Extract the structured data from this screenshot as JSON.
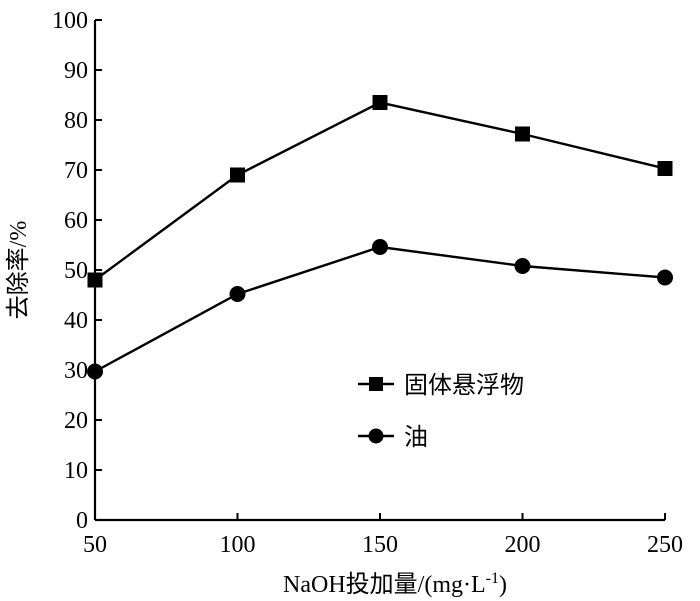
{
  "chart_data": {
    "type": "line",
    "xlabel": "NaOH投加量/(mg·L⁻¹)",
    "xlabel_main": "NaOH投加量/(mg·L",
    "xlabel_sup": "-1",
    "xlabel_end": ")",
    "ylabel": "去除率/%",
    "x": [
      50,
      100,
      150,
      200,
      250
    ],
    "xlim": [
      50,
      250
    ],
    "ylim": [
      0,
      100
    ],
    "x_ticks": [
      "50",
      "100",
      "150",
      "200",
      "250"
    ],
    "y_ticks": [
      "0",
      "10",
      "20",
      "30",
      "40",
      "50",
      "60",
      "70",
      "80",
      "90",
      "100"
    ],
    "grid": false,
    "legend_position": "center-right",
    "series": [
      {
        "name": "固体悬浮物",
        "marker": "square",
        "values": [
          48,
          69,
          83.5,
          77.2,
          70.3
        ]
      },
      {
        "name": "油",
        "marker": "circle",
        "values": [
          29.7,
          45.2,
          54.6,
          50.8,
          48.5
        ]
      }
    ]
  }
}
